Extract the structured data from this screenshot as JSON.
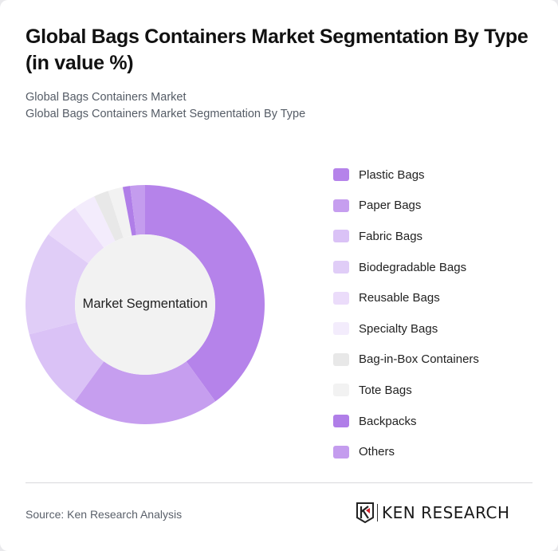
{
  "header": {
    "title": "Global Bags Containers Market Segmentation By Type (in value %)",
    "subtitle_1": "Global Bags Containers Market",
    "subtitle_2": "Global Bags Containers Market Segmentation By Type"
  },
  "chart_data": {
    "type": "pie",
    "variant": "donut",
    "title": "Global Bags Containers Market Segmentation By Type (in value %)",
    "center_label": "Market Segmentation",
    "categories": [
      "Plastic Bags",
      "Paper Bags",
      "Fabric Bags",
      "Biodegradable Bags",
      "Reusable Bags",
      "Specialty Bags",
      "Bag-in-Box Containers",
      "Tote Bags",
      "Backpacks",
      "Others"
    ],
    "values": [
      40,
      20,
      11,
      14,
      5,
      3,
      2,
      2,
      1,
      2
    ],
    "colors": [
      "#b583ea",
      "#c69eef",
      "#dac2f6",
      "#e0cdf7",
      "#ebdcfa",
      "#f3ecfc",
      "#e8e8e8",
      "#f2f2f2",
      "#b07ee8",
      "#c49cee"
    ],
    "legend_position": "right",
    "unit": "%"
  },
  "legend": {
    "items": [
      {
        "label": "Plastic Bags",
        "color": "#b583ea"
      },
      {
        "label": "Paper Bags",
        "color": "#c69eef"
      },
      {
        "label": "Fabric Bags",
        "color": "#dac2f6"
      },
      {
        "label": "Biodegradable Bags",
        "color": "#e0cdf7"
      },
      {
        "label": "Reusable Bags",
        "color": "#ebdcfa"
      },
      {
        "label": "Specialty Bags",
        "color": "#f3ecfc"
      },
      {
        "label": "Bag-in-Box Containers",
        "color": "#e8e8e8"
      },
      {
        "label": "Tote Bags",
        "color": "#f2f2f2"
      },
      {
        "label": "Backpacks",
        "color": "#b07ee8"
      },
      {
        "label": "Others",
        "color": "#c49cee"
      }
    ]
  },
  "footer": {
    "source": "Source: Ken Research Analysis",
    "logo_text": "KEN RESEARCH"
  }
}
